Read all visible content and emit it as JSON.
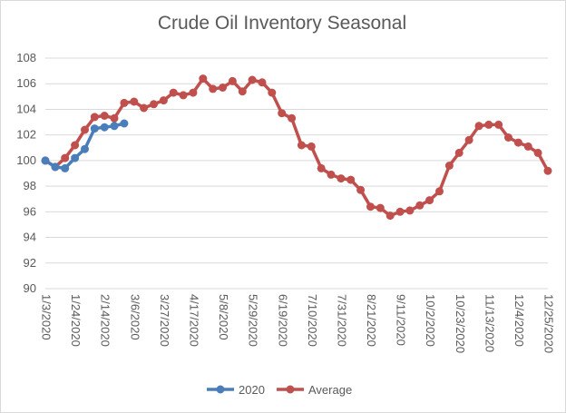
{
  "chart_data": {
    "type": "line",
    "title": "Crude Oil Inventory Seasonal",
    "xlabel": "",
    "ylabel": "",
    "ylim": [
      90,
      108
    ],
    "y_ticks": [
      "90",
      "92",
      "94",
      "96",
      "98",
      "100",
      "102",
      "104",
      "106",
      "108"
    ],
    "x_tick_labels": [
      "1/3/2020",
      "1/24/2020",
      "2/14/2020",
      "3/6/2020",
      "3/27/2020",
      "4/17/2020",
      "5/8/2020",
      "5/29/2020",
      "6/19/2020",
      "7/10/2020",
      "7/31/2020",
      "8/21/2020",
      "9/11/2020",
      "10/2/2020",
      "10/23/2020",
      "11/13/2020",
      "12/4/2020",
      "12/25/2020"
    ],
    "grid": true,
    "legend_position": "bottom",
    "series": [
      {
        "name": "2020",
        "color": "#4a7ebb",
        "values": [
          100.0,
          99.5,
          99.4,
          100.2,
          100.9,
          102.5,
          102.6,
          102.7,
          102.9
        ]
      },
      {
        "name": "Average",
        "color": "#c0504d",
        "values": [
          100.0,
          99.5,
          100.2,
          101.2,
          102.4,
          103.4,
          103.5,
          103.3,
          104.5,
          104.6,
          104.1,
          104.4,
          104.7,
          105.3,
          105.1,
          105.3,
          106.4,
          105.6,
          105.7,
          106.2,
          105.4,
          106.3,
          106.1,
          105.3,
          103.7,
          103.3,
          101.2,
          101.1,
          99.4,
          98.9,
          98.6,
          98.5,
          97.7,
          96.4,
          96.3,
          95.7,
          96.0,
          96.1,
          96.5,
          96.9,
          97.6,
          99.6,
          100.6,
          101.6,
          102.7,
          102.8,
          102.8,
          101.8,
          101.4,
          101.1,
          100.6,
          99.2
        ]
      }
    ]
  }
}
